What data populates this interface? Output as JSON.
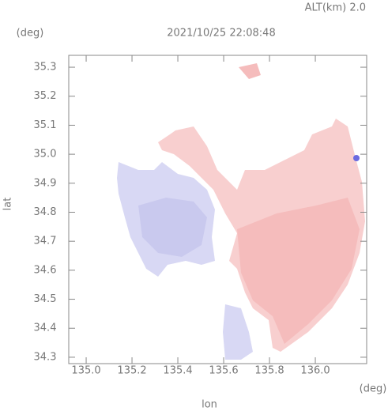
{
  "chart_data": {
    "type": "map",
    "altitude_label": "ALT(km) 2.0",
    "title": "2021/10/25 22:08:48",
    "y_unit": "(deg)",
    "x_unit": "(deg)",
    "xlabel": "lon",
    "ylabel": "lat",
    "xlim": [
      134.924,
      136.224
    ],
    "ylim": [
      34.278,
      35.341
    ],
    "xticks": [
      {
        "value": 135.0,
        "label": "135.0"
      },
      135.2,
      135.4,
      135.6,
      135.8,
      {
        "value": 136.0,
        "label": "136.0"
      }
    ],
    "yticks": [
      35.3,
      35.2,
      35.1,
      {
        "value": 35.0,
        "label": "35.0"
      },
      34.9,
      34.8,
      34.7,
      34.6,
      34.5,
      34.4,
      34.3
    ]
  }
}
